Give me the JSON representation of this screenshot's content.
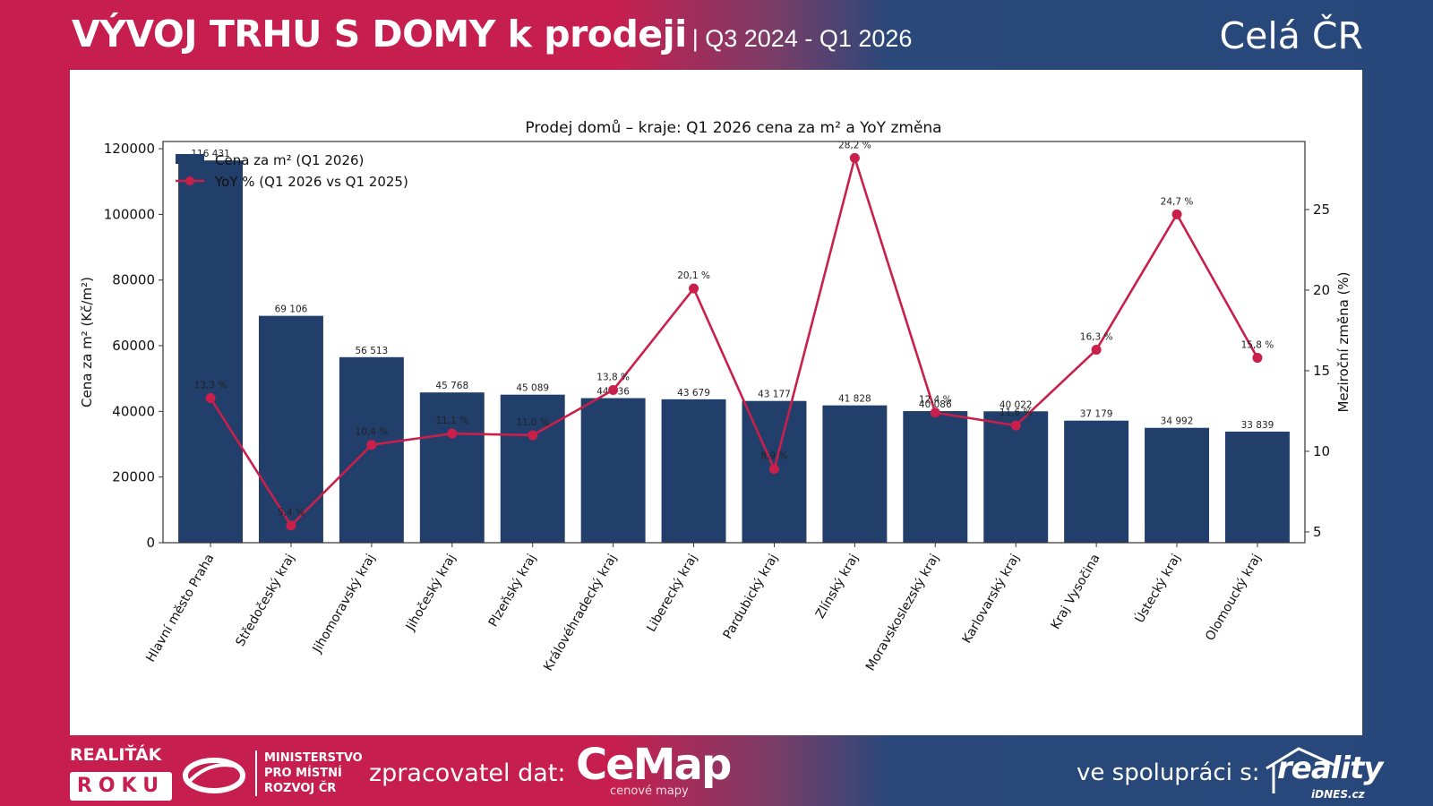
{
  "header": {
    "title": "VÝVOJ TRHU S DOMY k prodeji",
    "period": "| Q3 2024 - Q1 2026",
    "region": "Celá ČR"
  },
  "footer": {
    "award_line1": "REALIŤÁK",
    "award_line2": "ROKU",
    "ministry_line1": "MINISTERSTVO",
    "ministry_line2": "PRO MÍSTNÍ",
    "ministry_line3": "ROZVOJ ČR",
    "processor_label": "zpracovatel dat:",
    "processor_brand": "CeMap",
    "processor_tagline": "cenové mapy",
    "partner_label": "ve spolupráci s:",
    "partner_brand": "reality",
    "partner_sub": "iDNES.cz"
  },
  "colors": {
    "bar": "#213f6a",
    "line": "#c8204b",
    "brand_red": "#c61f4f",
    "brand_blue": "#27477a"
  },
  "chart_data": {
    "type": "bar",
    "title": "Prodej domů – kraje: Q1 2026 cena za m² a YoY změna",
    "xlabel": "",
    "ylabel": "Cena za m² (Kč/m²)",
    "y2label": "Meziroční změna (%)",
    "ylim": [
      0,
      122200
    ],
    "y2lim": [
      4.33,
      29.22
    ],
    "yticks": [
      0,
      20000,
      40000,
      60000,
      80000,
      100000,
      120000
    ],
    "y2ticks": [
      5,
      10,
      15,
      20,
      25
    ],
    "grid": false,
    "legend_position": "top-left",
    "categories": [
      "Hlavní město Praha",
      "Středočeský kraj",
      "Jihomoravský kraj",
      "Jihočeský kraj",
      "Plzeňský kraj",
      "Královéhradecký kraj",
      "Liberecký kraj",
      "Pardubický kraj",
      "Zlínský kraj",
      "Moravskoslezský kraj",
      "Karlovarský kraj",
      "Kraj Vysočina",
      "Ústecký kraj",
      "Olomoucký kraj"
    ],
    "series": [
      {
        "name": "Cena za m² (Q1 2026)",
        "type": "bar",
        "axis": "left",
        "values": [
          116431,
          69106,
          56513,
          45768,
          45089,
          44036,
          43679,
          43177,
          41828,
          40086,
          40022,
          37179,
          34992,
          33839
        ],
        "labels": [
          "116 431",
          "69 106",
          "56 513",
          "45 768",
          "45 089",
          "44 036",
          "43 679",
          "43 177",
          "41 828",
          "40 086",
          "40 022",
          "37 179",
          "34 992",
          "33 839"
        ]
      },
      {
        "name": "YoY % (Q1 2026 vs Q1 2025)",
        "type": "line",
        "axis": "right",
        "values": [
          13.3,
          5.4,
          10.4,
          11.1,
          11.0,
          13.8,
          20.1,
          8.9,
          28.2,
          12.4,
          11.6,
          16.3,
          24.7,
          15.8
        ],
        "labels": [
          "13,3 %",
          "5,4 %",
          "10,4 %",
          "11,1 %",
          "11,0 %",
          "13,8 %",
          "20,1 %",
          "8,9 %",
          "28,2 %",
          "12,4 %",
          "11,6 %",
          "16,3 %",
          "24,7 %",
          "15,8 %"
        ]
      }
    ]
  }
}
